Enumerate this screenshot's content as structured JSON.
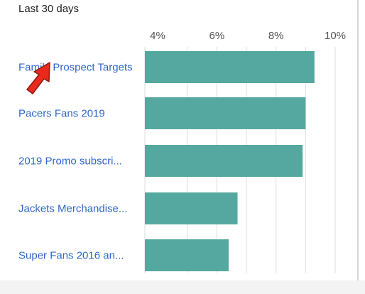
{
  "header": {
    "period_label": "Last 30 days"
  },
  "chart_data": {
    "type": "bar",
    "orientation": "horizontal",
    "categories": [
      "Family Prospect Targets",
      "Pacers Fans 2019",
      "2019 Promo subscri...",
      "Jackets Merchandise...",
      "Super Fans 2016 an..."
    ],
    "values": [
      9.3,
      9.0,
      8.9,
      6.7,
      6.4
    ],
    "unit": "%",
    "xticks": [
      4,
      6,
      8,
      10
    ],
    "xtick_labels": [
      "4%",
      "6%",
      "8%",
      "10%"
    ],
    "xlim": [
      3.5,
      10.5
    ],
    "grid": true,
    "bar_color": "#55a89f",
    "label_color": "#2f68c9",
    "title": "",
    "xlabel": "",
    "ylabel": ""
  },
  "annotation": {
    "type": "arrow",
    "icon": "red-arrow-pointer",
    "color": "#e8291c",
    "outline": "#8a1a12",
    "target_category": "Family Prospect Targets"
  }
}
